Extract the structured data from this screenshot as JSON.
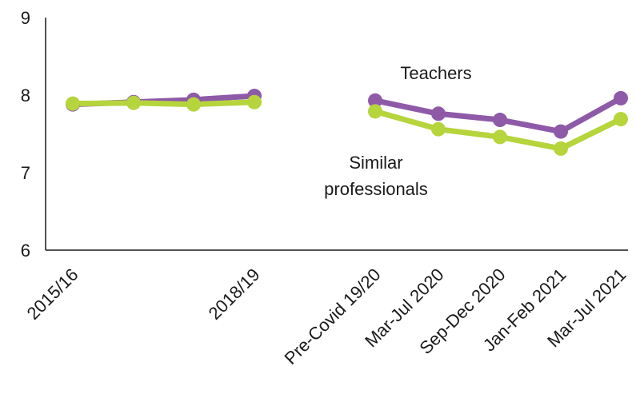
{
  "chart_data": {
    "type": "line",
    "title": "",
    "xlabel": "",
    "ylabel": "",
    "ylim": [
      6,
      9
    ],
    "yticks": [
      "6",
      "7",
      "8",
      "9"
    ],
    "categories": [
      "2015/16",
      "",
      "",
      "2018/19",
      "",
      "Pre-Covid 19/20",
      "Mar-Jul 2020",
      "Sep-Dec 2020",
      "Jan-Feb 2021",
      "Mar-Jul 2021"
    ],
    "legend": "inline labels",
    "grid": false,
    "series": [
      {
        "name": "Teachers",
        "color": "#8e5aa8",
        "values": [
          7.88,
          7.91,
          7.94,
          7.99,
          null,
          7.93,
          7.76,
          7.68,
          7.53,
          7.96
        ]
      },
      {
        "name": "Similar professionals",
        "color": "#b6d43c",
        "values": [
          7.89,
          7.9,
          7.88,
          7.91,
          null,
          7.79,
          7.56,
          7.46,
          7.31,
          7.69
        ]
      }
    ],
    "annotations": [
      {
        "series": "Teachers",
        "lines": [
          "Teachers"
        ]
      },
      {
        "series": "Similar professionals",
        "lines": [
          "Similar",
          "professionals"
        ]
      }
    ]
  }
}
